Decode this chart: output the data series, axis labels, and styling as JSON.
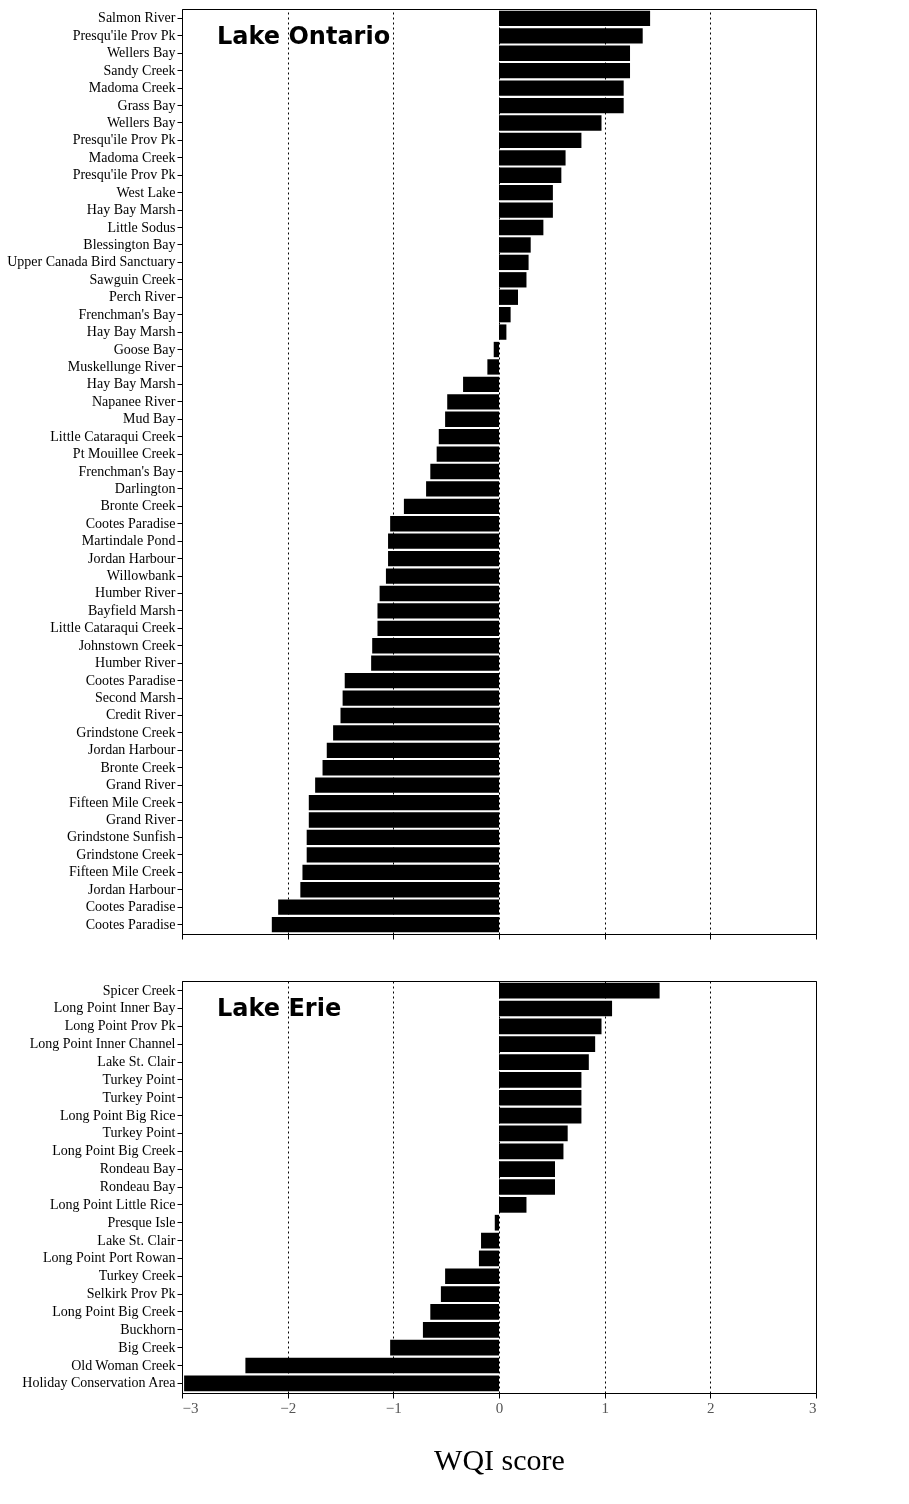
{
  "chart_data": [
    {
      "type": "bar",
      "orientation": "horizontal",
      "annotations": [
        "Lake Ontario"
      ],
      "color": "#000000",
      "grid": "x",
      "tick_labels": "y",
      "xlim": [
        -3,
        3
      ],
      "xticks": [
        -3,
        -2,
        -1,
        0,
        1,
        2,
        3
      ],
      "categories": [
        "Salmon River",
        "Presqu'ile Prov Pk",
        "Wellers Bay",
        "Sandy Creek",
        "Madoma Creek",
        "Grass Bay",
        "Wellers Bay",
        "Presqu'ile Prov Pk",
        "Madoma Creek",
        "Presqu'ile Prov Pk",
        "West Lake",
        "Hay Bay Marsh",
        "Little Sodus",
        "Blessington Bay",
        "Upper Canada Bird Sanctuary",
        "Sawguin Creek",
        "Perch River",
        "Frenchman's Bay",
        "Hay Bay Marsh",
        "Goose Bay",
        "Muskellunge River",
        "Hay Bay Marsh",
        "Napanee River",
        "Mud Bay",
        "Little Cataraqui Creek",
        "Pt Mouillee Creek",
        "Frenchman's Bay",
        "Darlington",
        "Bronte Creek",
        "Cootes Paradise",
        "Martindale Pond",
        "Jordan Harbour",
        "Willowbank",
        "Humber River",
        "Bayfield Marsh",
        "Little Cataraqui Creek",
        "Johnstown Creek",
        "Humber River",
        "Cootes Paradise",
        "Second Marsh",
        "Credit River",
        "Grindstone Creek",
        "Jordan Harbour",
        "Bronte Creek",
        "Grand River",
        "Fifteen Mile Creek",
        "Grand River",
        "Grindstone Sunfish",
        "Grindstone Creek",
        "Fifteen Mile Creek",
        "Jordan Harbour",
        "Cootes Paradise",
        "Cootes Paradise"
      ],
      "values": [
        1.43,
        1.36,
        1.24,
        1.24,
        1.18,
        1.18,
        0.97,
        0.78,
        0.63,
        0.59,
        0.51,
        0.51,
        0.42,
        0.3,
        0.28,
        0.26,
        0.18,
        0.11,
        0.07,
        -0.05,
        -0.11,
        -0.34,
        -0.49,
        -0.51,
        -0.57,
        -0.59,
        -0.65,
        -0.69,
        -0.9,
        -1.03,
        -1.05,
        -1.05,
        -1.07,
        -1.13,
        -1.15,
        -1.15,
        -1.2,
        -1.21,
        -1.46,
        -1.48,
        -1.5,
        -1.57,
        -1.63,
        -1.67,
        -1.74,
        -1.8,
        -1.8,
        -1.82,
        -1.82,
        -1.86,
        -1.88,
        -2.09,
        -2.15
      ]
    },
    {
      "type": "bar",
      "orientation": "horizontal",
      "annotations": [
        "Lake Erie"
      ],
      "color": "#000000",
      "grid": "x",
      "xlabel": "WQI score",
      "xlim": [
        -3,
        3
      ],
      "xticks": [
        -3,
        -2,
        -1,
        0,
        1,
        2,
        3
      ],
      "categories": [
        "Spicer Creek",
        "Long Point Inner Bay",
        "Long Point Prov Pk",
        "Long Point Inner Channel",
        "Lake St. Clair",
        "Turkey Point",
        "Turkey Point",
        "Long Point Big Rice",
        "Turkey Point",
        "Long Point Big Creek",
        "Rondeau Bay",
        "Rondeau Bay",
        "Long Point Little Rice",
        "Presque Isle",
        "Lake St. Clair",
        "Long Point Port Rowan",
        "Turkey Creek",
        "Selkirk Prov Pk",
        "Long Point Big Creek",
        "Buckhorn",
        "Big Creek",
        "Old Woman Creek",
        "Holiday Conservation Area"
      ],
      "values": [
        1.52,
        1.07,
        0.97,
        0.91,
        0.85,
        0.78,
        0.78,
        0.78,
        0.65,
        0.61,
        0.53,
        0.53,
        0.26,
        -0.04,
        -0.17,
        -0.19,
        -0.51,
        -0.55,
        -0.65,
        -0.72,
        -1.03,
        -2.4,
        -2.98
      ]
    }
  ]
}
